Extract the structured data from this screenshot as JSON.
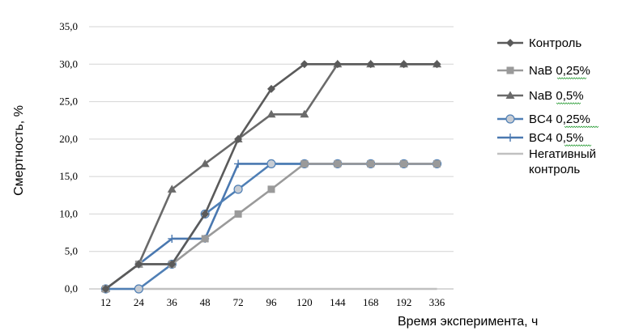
{
  "chart_data": {
    "type": "line",
    "xlabel": "Время эксперимента, ч",
    "ylabel": "Смертность, %",
    "categories": [
      "12",
      "24",
      "36",
      "48",
      "72",
      "96",
      "120",
      "144",
      "168",
      "192",
      "336"
    ],
    "yticks": [
      "0,0",
      "5,0",
      "10,0",
      "15,0",
      "20,0",
      "25,0",
      "30,0",
      "35,0"
    ],
    "ylim": [
      0,
      35
    ],
    "grid": "horizontal",
    "legend_position": "right",
    "series": [
      {
        "name": "Контроль",
        "color": "#5a5a5a",
        "marker": "diamond",
        "values": [
          0,
          3.3,
          3.3,
          10.0,
          20.0,
          26.7,
          30.0,
          30.0,
          30.0,
          30.0,
          30.0
        ]
      },
      {
        "name": "NaB 0,25%",
        "color": "#9a9a9a",
        "marker": "square",
        "values": [
          0,
          3.3,
          3.3,
          6.7,
          10.0,
          13.3,
          16.7,
          16.7,
          16.7,
          16.7,
          16.7
        ]
      },
      {
        "name": "NaB 0,5%",
        "color": "#6a6a6a",
        "marker": "triangle",
        "values": [
          0,
          3.3,
          13.3,
          16.7,
          20.0,
          23.3,
          23.3,
          30.0,
          30.0,
          30.0,
          30.0
        ]
      },
      {
        "name": "BC4 0,25%",
        "color": "#4f7fb5",
        "marker": "circle",
        "values": [
          0,
          0,
          3.3,
          10.0,
          13.3,
          16.7,
          16.7,
          16.7,
          16.7,
          16.7,
          16.7
        ]
      },
      {
        "name": "BC4 0,5%",
        "color": "#4a78b0",
        "marker": "plus",
        "values": [
          0,
          3.3,
          6.7,
          6.7,
          16.7,
          16.7,
          16.7,
          16.7,
          16.7,
          16.7,
          16.7
        ]
      },
      {
        "name": "Негативный контроль",
        "color": "#c0c0c0",
        "marker": "none",
        "values": [
          0,
          0,
          0,
          0,
          0,
          0,
          0,
          0,
          0,
          0,
          0
        ]
      }
    ]
  },
  "legend": [
    {
      "lines": [
        "Контроль"
      ]
    },
    {
      "lines": [
        "NaB 0,25%"
      ]
    },
    {
      "lines": [
        "NaB 0,5%"
      ]
    },
    {
      "lines": [
        "BC4 0,25%"
      ]
    },
    {
      "lines": [
        "BC4 0,5%"
      ]
    },
    {
      "lines": [
        "Негативный",
        "контроль"
      ]
    }
  ]
}
